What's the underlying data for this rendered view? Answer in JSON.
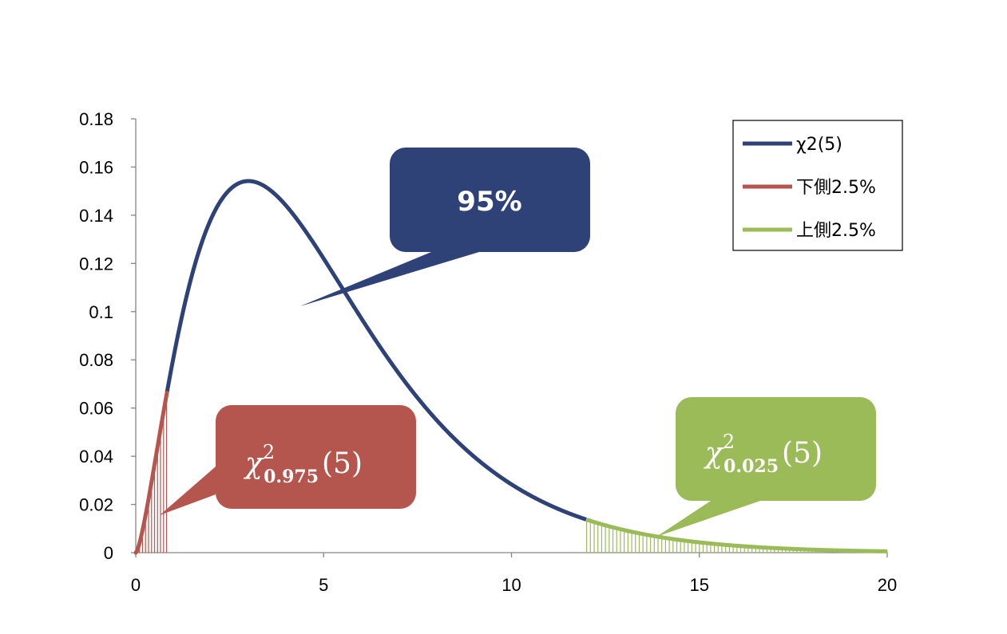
{
  "chart_data": {
    "type": "line",
    "degrees_of_freedom": 5,
    "x_range": [
      0,
      20
    ],
    "y_range": [
      0,
      0.18
    ],
    "x_ticks": [
      "0",
      "5",
      "10",
      "15",
      "20"
    ],
    "y_ticks": [
      "0",
      "0.02",
      "0.04",
      "0.06",
      "0.08",
      "0.1",
      "0.12",
      "0.14",
      "0.16",
      "0.18"
    ],
    "grid": false,
    "legend_position": "top-right",
    "series": [
      {
        "name": "χ2(5)",
        "color": "#2E4278",
        "x_from": 0,
        "x_to": 20,
        "style": "curve"
      },
      {
        "name": "下側2.5%",
        "color": "#B5564E",
        "x_from": 0,
        "x_to": 0.83,
        "style": "filled-lines"
      },
      {
        "name": "上側2.5%",
        "color": "#9BBB59",
        "x_from": 12.0,
        "x_to": 20,
        "style": "filled-lines"
      }
    ],
    "annotations": [
      {
        "id": "center",
        "text": "95%",
        "color": "#2E4278"
      },
      {
        "id": "lower",
        "symbol": "χ",
        "sup": "2",
        "sub": "0.975",
        "arg": "(5)",
        "color": "#B5564E"
      },
      {
        "id": "upper",
        "symbol": "χ",
        "sup": "2",
        "sub": "0.025",
        "arg": "(5)",
        "color": "#9BBB59"
      }
    ]
  }
}
